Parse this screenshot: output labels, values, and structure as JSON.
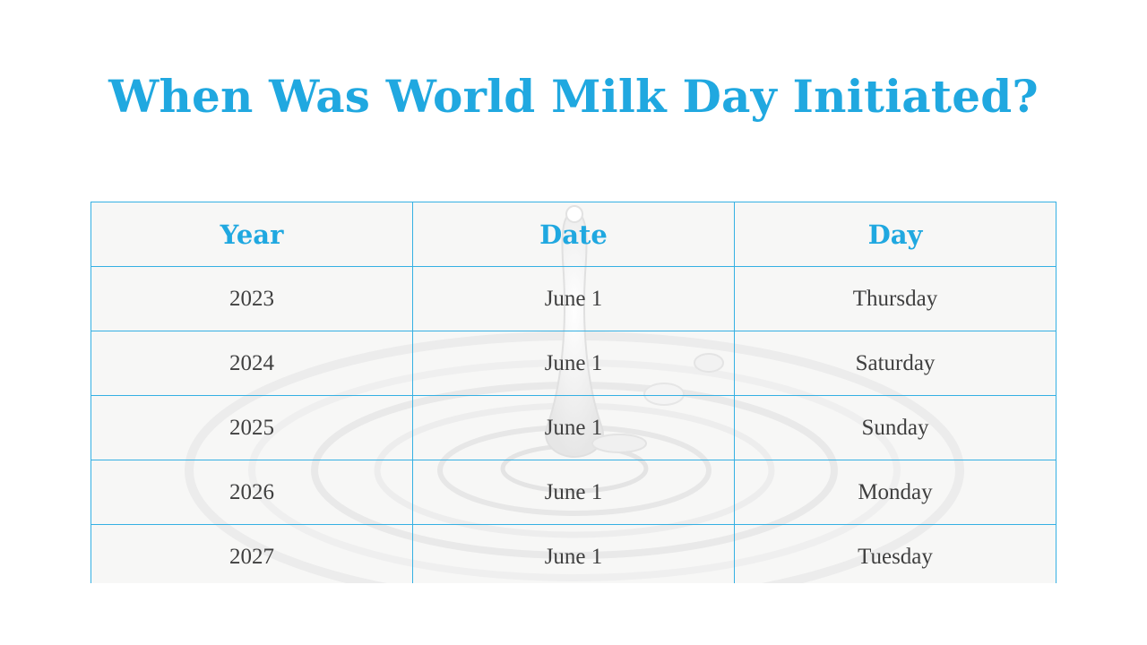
{
  "slide": {
    "title": "When Was World Milk Day Initiated?"
  },
  "table": {
    "headers": [
      "Year",
      "Date",
      "Day"
    ],
    "rows": [
      [
        "2023",
        "June 1",
        "Thursday"
      ],
      [
        "2024",
        "June 1",
        "Saturday"
      ],
      [
        "2025",
        "June 1",
        "Sunday"
      ],
      [
        "2026",
        "June 1",
        "Monday"
      ],
      [
        "2027",
        "June 1",
        "Tuesday"
      ]
    ]
  },
  "colors": {
    "accent": "#20a8e0",
    "border": "#35b0e3",
    "cell_background": "#f7f7f6",
    "body_text": "#3f3f3f"
  },
  "background_image": "milk-drop-ripple"
}
